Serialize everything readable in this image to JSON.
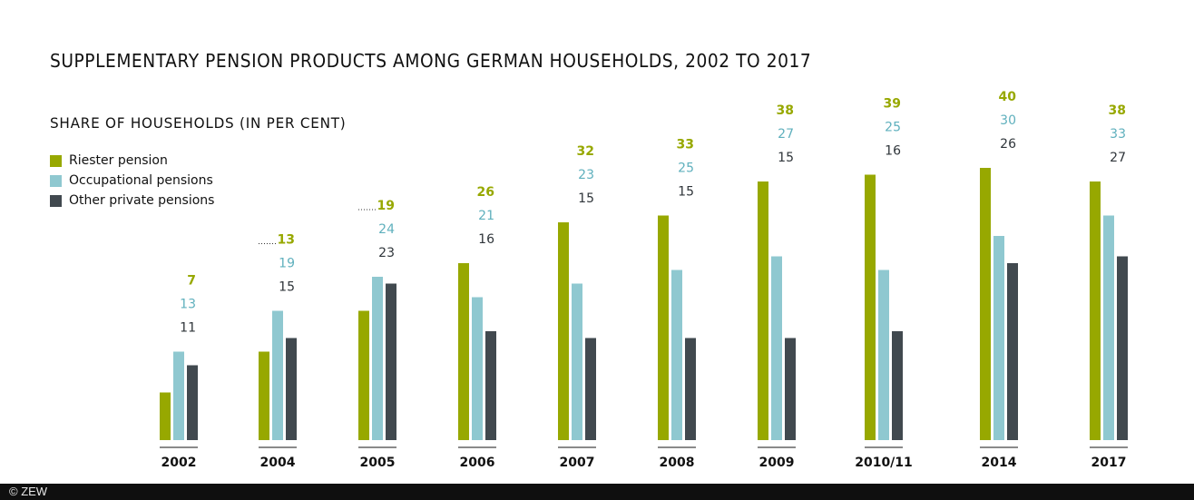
{
  "chart_data": {
    "type": "bar",
    "title": "SUPPLEMENTARY PENSION PRODUCTS AMONG GERMAN HOUSEHOLDS, 2002 TO 2017",
    "subtitle": "SHARE OF HOUSEHOLDS (IN PER CENT)",
    "xlabel": "",
    "ylabel": "",
    "ylim": [
      0,
      40
    ],
    "grid": false,
    "legend_position": "top-left",
    "categories": [
      "2002",
      "2004",
      "2005",
      "2006",
      "2007",
      "2008",
      "2009",
      "2010/11",
      "2014",
      "2017"
    ],
    "series": [
      {
        "name": "Riester pension",
        "color": "#97a800",
        "label_color": "#97a800",
        "values": [
          7,
          13,
          19,
          26,
          32,
          33,
          38,
          39,
          40,
          38
        ]
      },
      {
        "name": "Occupational pensions",
        "color": "#8fc8d0",
        "label_color": "#5fb0bd",
        "values": [
          13,
          19,
          24,
          21,
          23,
          25,
          27,
          25,
          30,
          33
        ]
      },
      {
        "name": "Other private pensions",
        "color": "#41494f",
        "label_color": "#2f353a",
        "values": [
          11,
          15,
          23,
          16,
          15,
          15,
          15,
          16,
          26,
          27
        ]
      }
    ],
    "annotations": [
      {
        "category": "2004",
        "series": "Riester pension",
        "note": "dotted leader line"
      },
      {
        "category": "2005",
        "series": "Riester pension",
        "note": "dotted leader line"
      }
    ]
  },
  "footer": {
    "copyright": "© ZEW"
  }
}
